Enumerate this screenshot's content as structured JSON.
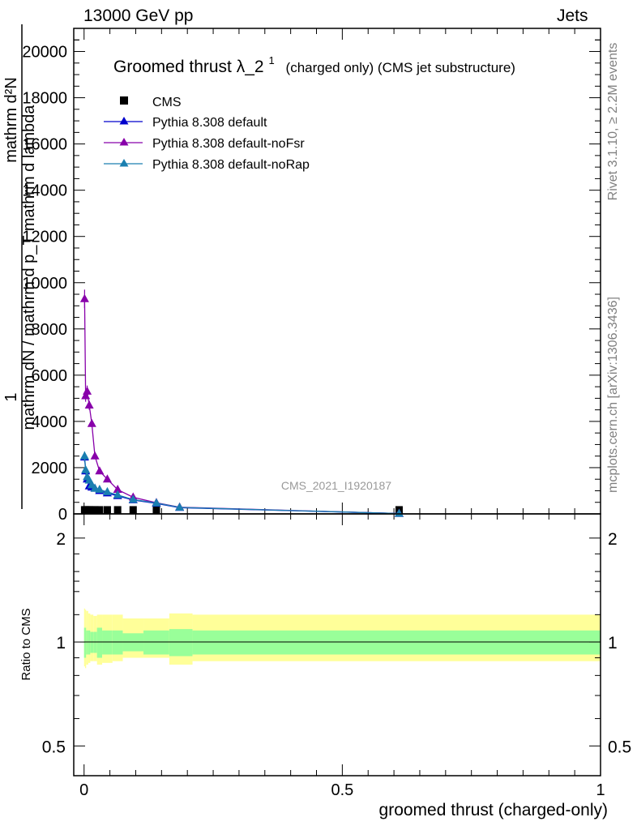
{
  "header": {
    "energy": "13000 GeV pp",
    "category": "Jets"
  },
  "side_labels": {
    "rivet": "Rivet 3.1.10, ≥ 2.2M events",
    "mcplots": "mcplots.cern.ch [arXiv:1306.3436]"
  },
  "watermark": "CMS_2021_I1920187",
  "colors": {
    "cms": "#000000",
    "default": "#0000cc",
    "noFsr": "#8800aa",
    "noRap": "#1a7fb0",
    "band_inner": "#99ff99",
    "band_outer": "#ffff99"
  },
  "chart_data": [
    {
      "type": "line",
      "title_main": "Groomed thrust",
      "title_sym": "λ_2",
      "title_sup": "1",
      "title_rest": "(charged only) (CMS jet substructure)",
      "ylabel_num": "1",
      "ylabel_den": "mathrm dN / mathrm d p_T mathrm d lambda",
      "ylabel_top": "mathrm d²N",
      "xlim": [
        -0.02,
        1.0
      ],
      "ylim": [
        0,
        21000
      ],
      "yticks": [
        "0",
        "2000",
        "4000",
        "6000",
        "8000",
        "10000",
        "12000",
        "14000",
        "16000",
        "18000",
        "20000"
      ],
      "legend_position": "top-left",
      "series": [
        {
          "name": "CMS",
          "marker": "square",
          "x": [
            0.001,
            0.003,
            0.006,
            0.01,
            0.015,
            0.021,
            0.03,
            0.045,
            0.065,
            0.095,
            0.14,
            0.61
          ],
          "y": [
            20,
            20,
            20,
            20,
            20,
            20,
            20,
            20,
            20,
            20,
            20,
            20
          ]
        },
        {
          "name": "Pythia 8.308 default",
          "marker": "triangle",
          "x": [
            0.001,
            0.003,
            0.006,
            0.01,
            0.015,
            0.021,
            0.03,
            0.045,
            0.065,
            0.095,
            0.14,
            0.185,
            0.61
          ],
          "y": [
            2450,
            1850,
            1500,
            1200,
            1150,
            1100,
            1000,
            900,
            780,
            600,
            450,
            270,
            15
          ],
          "err": [
            200,
            150,
            120,
            100,
            80,
            60,
            50,
            40,
            30,
            25,
            20,
            15,
            5
          ]
        },
        {
          "name": "Pythia 8.308 default-noFsr",
          "marker": "triangle",
          "x": [
            0.001,
            0.003,
            0.006,
            0.01,
            0.015,
            0.021,
            0.03,
            0.045,
            0.065,
            0.095,
            0.14,
            0.185,
            0.61
          ],
          "y": [
            9300,
            5100,
            5300,
            4700,
            3900,
            2500,
            1850,
            1500,
            1050,
            720,
            480,
            290,
            15
          ],
          "err": [
            400,
            250,
            250,
            200,
            150,
            100,
            80,
            60,
            40,
            30,
            20,
            15,
            5
          ]
        },
        {
          "name": "Pythia 8.308 default-noRap",
          "marker": "triangle",
          "x": [
            0.001,
            0.003,
            0.006,
            0.01,
            0.015,
            0.021,
            0.03,
            0.045,
            0.065,
            0.095,
            0.14,
            0.185,
            0.61
          ],
          "y": [
            2500,
            1900,
            1600,
            1450,
            1250,
            1100,
            1050,
            950,
            820,
            620,
            470,
            280,
            15
          ],
          "err": [
            200,
            150,
            120,
            100,
            80,
            60,
            50,
            40,
            30,
            25,
            20,
            15,
            5
          ]
        }
      ]
    },
    {
      "type": "area",
      "ylabel": "Ratio to CMS",
      "xlabel": "groomed thrust (charged-only)",
      "xlim": [
        -0.02,
        1.0
      ],
      "ylim": [
        0.41,
        2.35
      ],
      "yscale": "log",
      "xticks": [
        "0",
        "0.5",
        "1"
      ],
      "yticks": [
        "0.5",
        "1",
        "2"
      ],
      "bin_edges": [
        0,
        0.002,
        0.004,
        0.008,
        0.012,
        0.018,
        0.025,
        0.035,
        0.055,
        0.075,
        0.115,
        0.165,
        0.21,
        1.0
      ],
      "inner_band": [
        [
          0.9,
          1.1
        ],
        [
          0.9,
          1.1
        ],
        [
          0.92,
          1.08
        ],
        [
          0.92,
          1.08
        ],
        [
          0.93,
          1.07
        ],
        [
          0.93,
          1.07
        ],
        [
          0.9,
          1.1
        ],
        [
          0.92,
          1.08
        ],
        [
          0.92,
          1.08
        ],
        [
          0.94,
          1.06
        ],
        [
          0.92,
          1.08
        ],
        [
          0.91,
          1.09
        ],
        [
          0.92,
          1.08
        ]
      ],
      "outer_band": [
        [
          0.85,
          1.25
        ],
        [
          0.84,
          1.24
        ],
        [
          0.86,
          1.23
        ],
        [
          0.87,
          1.21
        ],
        [
          0.88,
          1.2
        ],
        [
          0.88,
          1.19
        ],
        [
          0.86,
          1.2
        ],
        [
          0.87,
          1.2
        ],
        [
          0.88,
          1.2
        ],
        [
          0.9,
          1.17
        ],
        [
          0.9,
          1.17
        ],
        [
          0.86,
          1.21
        ],
        [
          0.88,
          1.2
        ]
      ],
      "reference_line": 1.0
    }
  ]
}
